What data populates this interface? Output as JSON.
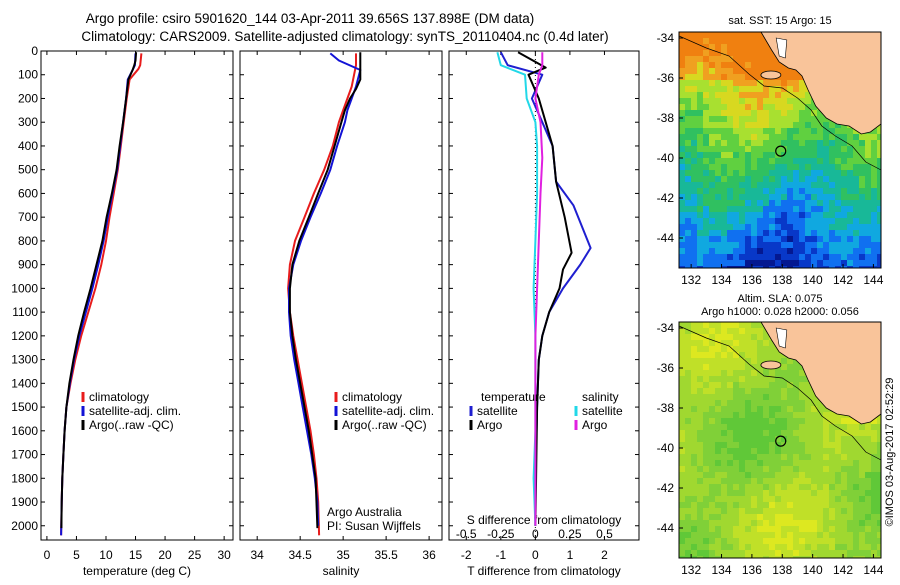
{
  "header": {
    "line1": "Argo profile: csiro 5901620_144 03-Apr-2011 39.656S 137.898E (DM data)",
    "line2": "Climatology: CARS2009. Satellite-adjusted climatology: synTS_20110404.nc (0.4d later)"
  },
  "side_note": "©IMOS 03-Aug-2017 02:52:29",
  "colors": {
    "climatology": "#e81c1c",
    "satellite": "#1212d6",
    "argo": "#000000",
    "t_satellite": "#1f1fd0",
    "s_satellite": "#22d8e8",
    "s_argo": "#e020e0",
    "land": "#f9c49a"
  },
  "chart_data": [
    {
      "type": "line",
      "id": "temperature",
      "xlabel": "temperature (deg C)",
      "xlim": [
        -1,
        31.5
      ],
      "ylim": [
        2060,
        0
      ],
      "xticks": [
        0,
        5,
        10,
        15,
        20,
        25,
        30
      ],
      "yticks": [
        0,
        100,
        200,
        300,
        400,
        500,
        600,
        700,
        800,
        900,
        1000,
        1100,
        1200,
        1300,
        1400,
        1500,
        1600,
        1700,
        1800,
        1900,
        2000
      ],
      "legend": [
        "climatology",
        "satellite-adj. clim.",
        "Argo(..raw -QC)"
      ],
      "series": [
        {
          "name": "climatology",
          "color": "#e81c1c",
          "x": [
            16.0,
            15.8,
            15.5,
            14.0,
            13.5,
            13.0,
            12.5,
            12.0,
            11.3,
            10.6,
            10.0,
            9.2,
            8.2,
            7.0,
            5.8,
            4.8,
            4.0,
            3.3,
            3.0,
            2.8,
            2.6,
            2.5,
            2.4
          ],
          "y": [
            10,
            60,
            75,
            120,
            200,
            300,
            400,
            500,
            600,
            700,
            800,
            900,
            1000,
            1100,
            1200,
            1300,
            1400,
            1500,
            1600,
            1700,
            1800,
            1900,
            2040
          ]
        },
        {
          "name": "satellite-adj. clim.",
          "color": "#1212d6",
          "x": [
            15.0,
            14.9,
            14.6,
            13.7,
            13.4,
            12.9,
            12.4,
            11.9,
            11.1,
            10.3,
            9.6,
            8.7,
            7.7,
            6.6,
            5.5,
            4.6,
            3.9,
            3.3,
            3.0,
            2.8,
            2.6,
            2.5,
            2.4
          ],
          "y": [
            10,
            60,
            75,
            120,
            200,
            300,
            400,
            500,
            600,
            700,
            800,
            900,
            1000,
            1100,
            1200,
            1300,
            1400,
            1500,
            1600,
            1700,
            1800,
            1900,
            2040
          ]
        },
        {
          "name": "Argo(..raw -QC)",
          "color": "#000000",
          "x": [
            15.1,
            15.0,
            14.8,
            14.5,
            13.8,
            13.4,
            12.9,
            12.3,
            11.8,
            11.0,
            10.1,
            9.4,
            8.4,
            7.4,
            6.3,
            5.3,
            4.5,
            3.8,
            3.3,
            3.0,
            2.8,
            2.6,
            2.5,
            2.45
          ],
          "y": [
            5,
            40,
            60,
            80,
            120,
            200,
            300,
            400,
            500,
            600,
            700,
            800,
            900,
            1000,
            1100,
            1200,
            1300,
            1400,
            1500,
            1600,
            1700,
            1800,
            1900,
            2010
          ]
        }
      ]
    },
    {
      "type": "line",
      "id": "salinity",
      "xlabel": "salinity",
      "xlim": [
        33.8,
        36.15
      ],
      "ylim": [
        2060,
        0
      ],
      "xticks": [
        34,
        34.5,
        35,
        35.5,
        36
      ],
      "legend": [
        "climatology",
        "satellite-adj. clim.",
        "Argo(..raw -QC)"
      ],
      "annotation": [
        "Argo Australia",
        "PI: Susan Wijffels"
      ],
      "series": [
        {
          "name": "climatology",
          "color": "#e81c1c",
          "x": [
            35.15,
            35.15,
            35.1,
            35.05,
            35.0,
            34.95,
            34.88,
            34.78,
            34.66,
            34.55,
            34.44,
            34.38,
            34.36,
            34.38,
            34.42,
            34.47,
            34.52,
            34.57,
            34.62,
            34.66,
            34.69,
            34.71,
            34.72
          ],
          "y": [
            10,
            60,
            150,
            200,
            250,
            300,
            400,
            500,
            600,
            700,
            800,
            900,
            1000,
            1100,
            1200,
            1300,
            1400,
            1500,
            1600,
            1700,
            1800,
            1900,
            2040
          ]
        },
        {
          "name": "satellite-adj. clim.",
          "color": "#1212d6",
          "x": [
            34.85,
            34.95,
            35.2,
            35.15,
            35.1,
            35.05,
            35.02,
            34.93,
            34.85,
            34.74,
            34.62,
            34.51,
            34.42,
            34.37,
            34.37,
            34.39,
            34.43,
            34.48,
            34.53,
            34.58,
            34.63,
            34.67,
            34.7,
            34.71
          ],
          "y": [
            10,
            40,
            80,
            150,
            200,
            250,
            300,
            400,
            500,
            600,
            700,
            800,
            900,
            1000,
            1100,
            1200,
            1300,
            1400,
            1500,
            1600,
            1700,
            1800,
            1900,
            2000
          ]
        },
        {
          "name": "Argo(..raw -QC)",
          "color": "#000000",
          "x": [
            35.2,
            35.2,
            35.2,
            35.15,
            35.08,
            35.02,
            34.98,
            34.9,
            34.82,
            34.71,
            34.6,
            34.49,
            34.41,
            34.38,
            34.38,
            34.41,
            34.45,
            34.5,
            34.55,
            34.6,
            34.64,
            34.68,
            34.7
          ],
          "y": [
            5,
            60,
            120,
            160,
            200,
            250,
            300,
            400,
            500,
            600,
            700,
            800,
            900,
            1000,
            1100,
            1200,
            1300,
            1400,
            1500,
            1600,
            1700,
            1800,
            2010
          ]
        }
      ]
    },
    {
      "type": "line",
      "id": "difference",
      "xlabel": "T difference from climatology",
      "xlabel_top": "S difference from climatology",
      "xlim": [
        -2.5,
        3.0
      ],
      "ylim": [
        2060,
        0
      ],
      "xticks": [
        -2,
        -1,
        0,
        1,
        2
      ],
      "xticks_s": [
        -0.5,
        -0.25,
        0,
        0.25,
        0.5
      ],
      "xticks_s_labels": [
        "-0.5",
        "-0.25",
        "0",
        "0.25",
        "0.5"
      ],
      "legend": {
        "t_header": "temperature",
        "s_header": "salinity",
        "t_items": [
          "satellite",
          "Argo"
        ],
        "s_items": [
          "satellite",
          "Argo"
        ]
      },
      "series": [
        {
          "name": "temperature satellite",
          "color": "#1f1fd0",
          "x": [
            -1.0,
            -0.8,
            0.2,
            -0.1,
            0.2,
            0.5,
            0.6,
            1.1,
            1.6,
            1.3,
            0.8,
            0.4,
            0.2,
            0.1,
            0.05,
            0.0,
            0.0
          ],
          "y": [
            5,
            60,
            100,
            200,
            300,
            400,
            550,
            650,
            830,
            900,
            1000,
            1100,
            1200,
            1300,
            1500,
            1800,
            2000
          ]
        },
        {
          "name": "temperature Argo",
          "color": "#000000",
          "x": [
            -0.5,
            0.3,
            -0.2,
            0.1,
            0.3,
            0.5,
            0.6,
            0.85,
            1.05,
            0.8,
            0.7,
            0.4,
            0.2,
            0.1,
            0.05,
            0.0
          ],
          "y": [
            5,
            70,
            100,
            200,
            300,
            400,
            550,
            700,
            850,
            920,
            1000,
            1100,
            1200,
            1300,
            1500,
            2000
          ]
        },
        {
          "name": "salinity satellite",
          "color": "#22d8e8",
          "x": [
            -1.1,
            -1.0,
            -0.3,
            -0.25,
            0.0,
            0.05,
            0.05,
            0.0,
            -0.05,
            0.0,
            0.0,
            0.0,
            -0.05,
            0.0
          ],
          "y": [
            5,
            60,
            100,
            200,
            300,
            400,
            600,
            800,
            1000,
            1200,
            1400,
            1600,
            1800,
            2000
          ]
        },
        {
          "name": "salinity Argo",
          "color": "#e020e0",
          "x": [
            0.2,
            0.2,
            0.1,
            0.0,
            0.15,
            0.2,
            0.15,
            0.1,
            0.05,
            0.0,
            0.0,
            0.0
          ],
          "y": [
            5,
            60,
            100,
            200,
            300,
            450,
            600,
            800,
            1000,
            1200,
            1500,
            2000
          ]
        }
      ]
    },
    {
      "type": "heatmap",
      "id": "sst-map",
      "title": "sat. SST: 15 Argo: 15",
      "xlim": [
        131.2,
        144.5
      ],
      "ylim": [
        -45.5,
        -33.7
      ],
      "xticks": [
        132,
        134,
        136,
        138,
        140,
        142,
        144
      ],
      "yticks": [
        -34,
        -36,
        -38,
        -40,
        -42,
        -44
      ],
      "yticklabels": [
        "-34",
        "-36",
        "-38",
        "-40",
        "-42",
        "-44"
      ],
      "marker": {
        "lon": 137.898,
        "lat": -39.656
      }
    },
    {
      "type": "heatmap",
      "id": "sla-map",
      "title_lines": [
        "Altim. SLA: 0.075",
        "Argo h1000: 0.028 h2000: 0.056"
      ],
      "xlim": [
        131.2,
        144.5
      ],
      "ylim": [
        -45.5,
        -33.7
      ],
      "xticks": [
        132,
        134,
        136,
        138,
        140,
        142,
        144
      ],
      "yticks": [
        -34,
        -36,
        -38,
        -40,
        -42,
        -44
      ],
      "yticklabels": [
        "-34",
        "-36",
        "-38",
        "-40",
        "-42",
        "-44"
      ],
      "marker": {
        "lon": 137.898,
        "lat": -39.656
      }
    }
  ]
}
